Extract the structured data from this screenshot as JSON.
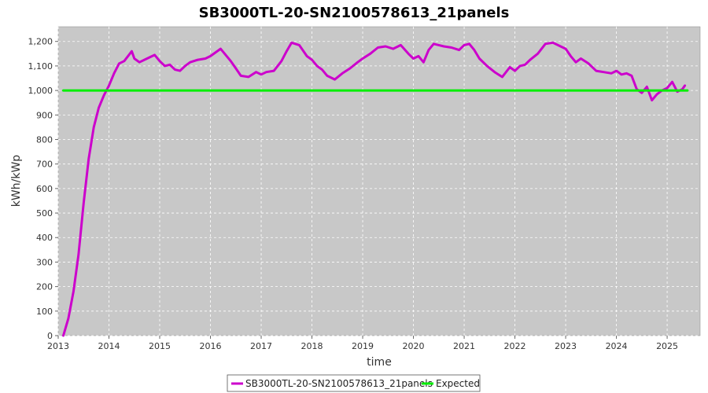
{
  "chart_data": {
    "type": "line",
    "title": "SB3000TL-20-SN2100578613_21panels",
    "xlabel": "time",
    "ylabel": "kWh/kWp",
    "xlim": [
      2013.0,
      2025.65
    ],
    "ylim": [
      0,
      1260
    ],
    "x_ticks": [
      2013,
      2014,
      2015,
      2016,
      2017,
      2018,
      2019,
      2020,
      2021,
      2022,
      2023,
      2024,
      2025
    ],
    "y_ticks": [
      0,
      100,
      200,
      300,
      400,
      500,
      600,
      700,
      800,
      900,
      1000,
      1100,
      1200
    ],
    "y_tick_labels": [
      "0",
      "100",
      "200",
      "300",
      "400",
      "500",
      "600",
      "700",
      "800",
      "900",
      "1,000",
      "1,100",
      "1,200"
    ],
    "grid": true,
    "legend_position": "bottom",
    "series": [
      {
        "name": "SB3000TL-20-SN2100578613_21panels",
        "color": "#cc00cc",
        "x": [
          2013.1,
          2013.2,
          2013.3,
          2013.4,
          2013.5,
          2013.6,
          2013.7,
          2013.8,
          2013.9,
          2014.0,
          2014.1,
          2014.2,
          2014.3,
          2014.45,
          2014.5,
          2014.6,
          2014.75,
          2014.9,
          2015.0,
          2015.1,
          2015.2,
          2015.3,
          2015.4,
          2015.5,
          2015.6,
          2015.75,
          2015.9,
          2016.0,
          2016.2,
          2016.4,
          2016.5,
          2016.6,
          2016.75,
          2016.9,
          2017.0,
          2017.1,
          2017.25,
          2017.4,
          2017.5,
          2017.6,
          2017.75,
          2017.9,
          2018.0,
          2018.1,
          2018.2,
          2018.3,
          2018.45,
          2018.6,
          2018.75,
          2018.9,
          2019.0,
          2019.15,
          2019.3,
          2019.45,
          2019.6,
          2019.75,
          2019.9,
          2020.0,
          2020.1,
          2020.2,
          2020.3,
          2020.4,
          2020.5,
          2020.6,
          2020.75,
          2020.9,
          2021.0,
          2021.1,
          2021.2,
          2021.3,
          2021.45,
          2021.6,
          2021.75,
          2021.9,
          2022.0,
          2022.1,
          2022.2,
          2022.3,
          2022.45,
          2022.6,
          2022.75,
          2022.9,
          2023.0,
          2023.1,
          2023.2,
          2023.3,
          2023.45,
          2023.6,
          2023.75,
          2023.9,
          2024.0,
          2024.1,
          2024.2,
          2024.3,
          2024.4,
          2024.5,
          2024.6,
          2024.7,
          2024.8,
          2024.9,
          2025.0,
          2025.1,
          2025.2,
          2025.3,
          2025.35
        ],
        "y": [
          0,
          70,
          180,
          330,
          540,
          720,
          850,
          930,
          980,
          1020,
          1070,
          1110,
          1120,
          1160,
          1130,
          1115,
          1130,
          1145,
          1120,
          1100,
          1105,
          1085,
          1080,
          1100,
          1115,
          1125,
          1130,
          1140,
          1170,
          1120,
          1090,
          1060,
          1055,
          1075,
          1065,
          1075,
          1080,
          1120,
          1160,
          1195,
          1185,
          1140,
          1125,
          1100,
          1085,
          1060,
          1045,
          1070,
          1090,
          1115,
          1130,
          1150,
          1175,
          1180,
          1170,
          1185,
          1150,
          1130,
          1140,
          1115,
          1165,
          1190,
          1185,
          1180,
          1175,
          1165,
          1185,
          1190,
          1165,
          1130,
          1100,
          1075,
          1055,
          1095,
          1080,
          1100,
          1105,
          1125,
          1150,
          1190,
          1195,
          1180,
          1170,
          1140,
          1115,
          1130,
          1110,
          1080,
          1075,
          1070,
          1080,
          1065,
          1070,
          1060,
          1005,
          990,
          1015,
          960,
          985,
          1000,
          1010,
          1035,
          995,
          1005,
          1020
        ]
      },
      {
        "name": "Expected",
        "color": "#00ee00",
        "x": [
          2013.1,
          2025.4
        ],
        "y": [
          1000,
          1000
        ]
      }
    ]
  }
}
